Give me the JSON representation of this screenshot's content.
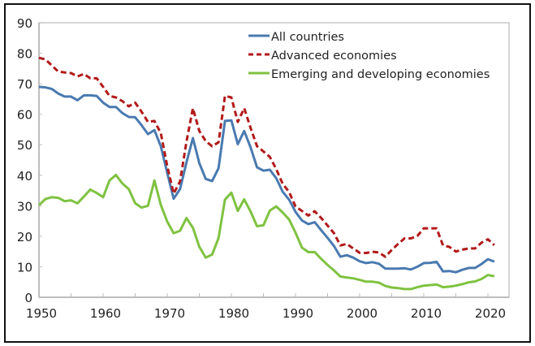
{
  "chart_data": {
    "type": "line",
    "title": "",
    "xlabel": "",
    "ylabel": "",
    "xlim": [
      1950,
      2022
    ],
    "ylim": [
      0,
      90
    ],
    "grid": false,
    "legend_position": "top-right",
    "x_ticks": [
      1950,
      1960,
      1970,
      1980,
      1990,
      2000,
      2010,
      2020
    ],
    "y_ticks": [
      0,
      10,
      20,
      30,
      40,
      50,
      60,
      70,
      80,
      90
    ],
    "x": [
      1950,
      1951,
      1952,
      1953,
      1954,
      1955,
      1956,
      1957,
      1958,
      1959,
      1960,
      1961,
      1962,
      1963,
      1964,
      1965,
      1966,
      1967,
      1968,
      1969,
      1970,
      1971,
      1972,
      1973,
      1974,
      1975,
      1976,
      1977,
      1978,
      1979,
      1980,
      1981,
      1982,
      1983,
      1984,
      1985,
      1986,
      1987,
      1988,
      1989,
      1990,
      1991,
      1992,
      1993,
      1994,
      1995,
      1996,
      1997,
      1998,
      1999,
      2000,
      2001,
      2002,
      2003,
      2004,
      2005,
      2006,
      2007,
      2008,
      2009,
      2010,
      2011,
      2012,
      2013,
      2014,
      2015,
      2016,
      2017,
      2018,
      2019,
      2020,
      2021
    ],
    "series": [
      {
        "name": "All countries",
        "color": "#4a7ab0",
        "style": "solid",
        "values": [
          69,
          68.8,
          68.3,
          66.8,
          65.8,
          65.8,
          64.6,
          66.2,
          66.2,
          66,
          63.8,
          62.4,
          62.4,
          60.4,
          59.1,
          59,
          56.4,
          53.5,
          54.8,
          49.5,
          40.8,
          32.3,
          35.5,
          44.2,
          52.2,
          44,
          38.8,
          38.1,
          42.3,
          57.8,
          58,
          50.2,
          54.5,
          49.1,
          42.6,
          41.5,
          41.8,
          39,
          34.6,
          32,
          28,
          25.2,
          24,
          24.6,
          22,
          19.5,
          16.8,
          13.3,
          13.8,
          13,
          11.8,
          11.2,
          11.5,
          11,
          9.4,
          9.4,
          9.4,
          9.5,
          9.1,
          10,
          11.2,
          11.3,
          11.6,
          8.5,
          8.6,
          8.2,
          9,
          9.6,
          9.6,
          10.9,
          12.5,
          11.7
        ]
      },
      {
        "name": "Advanced economies",
        "color": "#b21a1a",
        "style": "dashed",
        "values": [
          78.5,
          78,
          76,
          74,
          73.7,
          73.5,
          72.4,
          73.2,
          71.8,
          71.8,
          69,
          66,
          65.5,
          64.3,
          62.6,
          63.8,
          60.8,
          57.5,
          57.8,
          53.8,
          43,
          34,
          38,
          51,
          62,
          54.5,
          51.2,
          49.5,
          50.8,
          66,
          65.5,
          57.5,
          62,
          55.5,
          49.5,
          47.8,
          46,
          42,
          37.2,
          34.5,
          29.8,
          28.3,
          26.8,
          28.2,
          26,
          23.5,
          21,
          17,
          17.5,
          16,
          14.6,
          14.5,
          14.9,
          14.7,
          13.3,
          15.5,
          17.5,
          19.3,
          19.3,
          20.1,
          22.6,
          22.6,
          22.6,
          17,
          16.5,
          15,
          15.6,
          16,
          16,
          17.9,
          19,
          17.1
        ]
      },
      {
        "name": "Emerging and developing economies",
        "color": "#7fc241",
        "style": "solid",
        "values": [
          30.2,
          32.2,
          32.8,
          32.6,
          31.5,
          31.8,
          30.8,
          33,
          35.3,
          34.2,
          32.8,
          38.3,
          40.1,
          37.3,
          35.5,
          30.8,
          29.4,
          30,
          38.3,
          30.3,
          24.8,
          21,
          21.8,
          26,
          22.8,
          16.6,
          13,
          14,
          19.4,
          32,
          34.3,
          28.3,
          32.1,
          28.1,
          23.3,
          23.6,
          28.4,
          29.8,
          27.8,
          25.5,
          21.2,
          16.3,
          14.8,
          14.8,
          12.6,
          10.6,
          8.8,
          6.8,
          6.5,
          6.2,
          5.7,
          5.1,
          5.1,
          4.8,
          3.7,
          3.2,
          3,
          2.7,
          2.7,
          3.3,
          3.8,
          4,
          4.2,
          3.3,
          3.5,
          3.8,
          4.3,
          4.9,
          5.2,
          6,
          7.3,
          6.9
        ]
      }
    ]
  }
}
